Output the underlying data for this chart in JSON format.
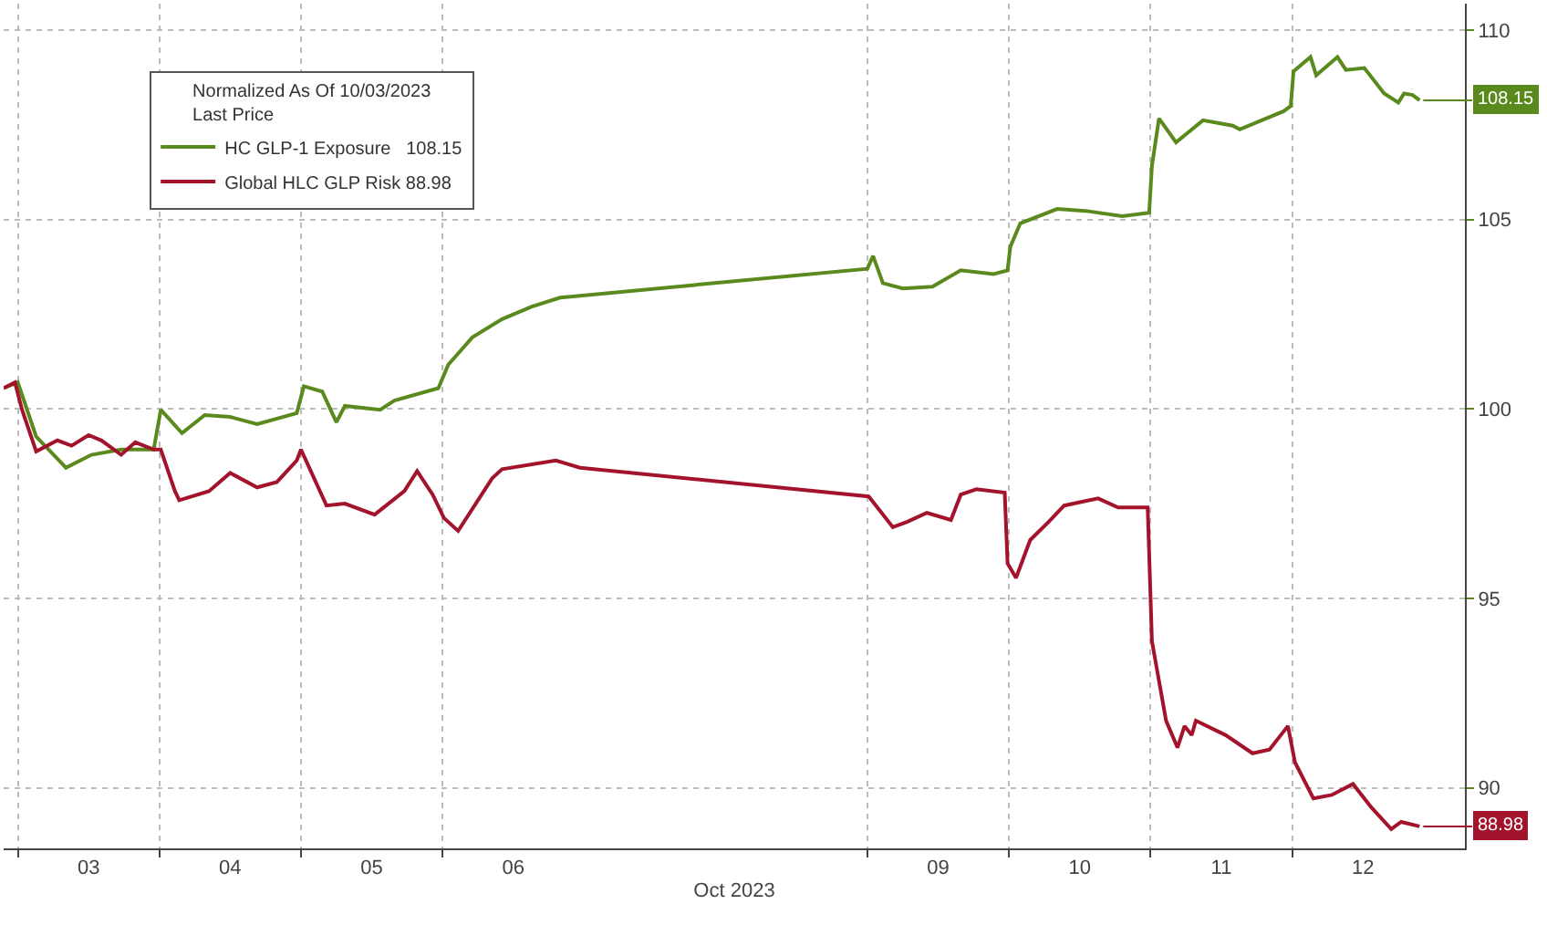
{
  "chart_data": {
    "type": "line",
    "legend_title": "Normalized As Of 10/03/2023\nLast Price",
    "xlabel": "Oct 2023",
    "xlim": [
      "2023-10-02T21:36",
      "2023-10-13T05:17"
    ],
    "xticks": [
      {
        "value": "2023-10-03",
        "label": null
      },
      {
        "value": "2023-10-03T12:00",
        "label": "03"
      },
      {
        "value": "2023-10-04",
        "label": null
      },
      {
        "value": "2023-10-04T12:00",
        "label": "04"
      },
      {
        "value": "2023-10-05",
        "label": null
      },
      {
        "value": "2023-10-05T12:00",
        "label": "05"
      },
      {
        "value": "2023-10-06",
        "label": null
      },
      {
        "value": "2023-10-06T12:00",
        "label": "06"
      },
      {
        "value": "2023-10-09",
        "label": null
      },
      {
        "value": "2023-10-09T12:00",
        "label": "09"
      },
      {
        "value": "2023-10-10",
        "label": null
      },
      {
        "value": "2023-10-10T12:00",
        "label": "10"
      },
      {
        "value": "2023-10-11",
        "label": null
      },
      {
        "value": "2023-10-11T12:00",
        "label": "11"
      },
      {
        "value": "2023-10-12",
        "label": null
      },
      {
        "value": "2023-10-12T12:00",
        "label": "12"
      }
    ],
    "ylim": [
      88.4,
      110.7
    ],
    "yticks": [
      90,
      95,
      100,
      105,
      110
    ],
    "grid": true,
    "legend": "top left",
    "series": [
      {
        "name": "HC GLP-1 Exposure   108.15",
        "color": "#5a8a1e",
        "x": [
          "2023-10-02T21:36",
          "2023-10-03T00:00",
          "2023-10-03T03:07",
          "2023-10-03T08:10",
          "2023-10-03T12:29",
          "2023-10-03T17:31",
          "2023-10-03T23:02",
          "2023-10-04T00:14",
          "2023-10-04T03:50",
          "2023-10-04T07:41",
          "2023-10-04T12:00",
          "2023-10-04T16:34",
          "2023-10-04T23:17",
          "2023-10-05T00:29",
          "2023-10-05T03:36",
          "2023-10-05T06:00",
          "2023-10-05T07:26",
          "2023-10-05T13:26",
          "2023-10-05T15:50",
          "2023-10-05T23:17",
          "2023-10-06T00:58",
          "2023-10-06T05:02",
          "2023-10-06T10:05",
          "2023-10-06T15:07",
          "2023-10-06T19:55",
          "2023-10-06T23:17",
          "2023-10-09T00:00",
          "2023-10-09T00:58",
          "2023-10-09T02:38",
          "2023-10-09T06:00",
          "2023-10-09T11:02",
          "2023-10-09T15:50",
          "2023-10-09T21:22",
          "2023-10-09T23:46",
          "2023-10-10T00:14",
          "2023-10-10T01:55",
          "2023-10-10T08:10",
          "2023-10-10T12:58",
          "2023-10-10T19:12",
          "2023-10-10T23:46",
          "2023-10-11T00:14",
          "2023-10-11T01:26",
          "2023-10-11T04:19",
          "2023-10-11T08:53",
          "2023-10-11T13:55",
          "2023-10-11T15:07",
          "2023-10-11T22:34",
          "2023-10-11T23:46",
          "2023-10-12T00:14",
          "2023-10-12T03:07",
          "2023-10-12T04:05",
          "2023-10-12T07:41",
          "2023-10-12T09:07",
          "2023-10-12T12:14",
          "2023-10-12T15:36",
          "2023-10-12T18:00",
          "2023-10-12T18:58",
          "2023-10-12T20:24",
          "2023-10-12T21:36"
        ],
        "values": [
          100.55,
          100.7,
          99.27,
          98.45,
          98.79,
          98.93,
          98.93,
          99.98,
          99.36,
          99.84,
          99.79,
          99.6,
          99.89,
          100.6,
          100.46,
          99.65,
          100.08,
          99.98,
          100.22,
          100.55,
          101.17,
          101.89,
          102.37,
          102.7,
          102.94,
          102.99,
          103.7,
          104.04,
          103.32,
          103.18,
          103.23,
          103.66,
          103.56,
          103.66,
          104.28,
          104.9,
          105.28,
          105.23,
          105.09,
          105.18,
          106.42,
          107.67,
          107.04,
          107.62,
          107.48,
          107.38,
          107.86,
          108.0,
          108.91,
          109.29,
          108.81,
          109.29,
          108.95,
          109.0,
          108.33,
          108.09,
          108.33,
          108.29,
          108.15
        ],
        "value_labels": [
          null,
          null,
          null,
          null,
          null,
          null,
          null,
          null,
          null,
          null,
          null,
          null,
          null,
          null,
          null,
          null,
          null,
          null,
          null,
          null,
          null,
          null,
          null,
          null,
          null,
          null,
          null,
          null,
          null,
          null,
          null,
          null,
          null,
          null,
          null,
          null,
          null,
          null,
          null,
          null,
          null,
          null,
          null,
          null,
          null,
          null,
          null,
          null,
          null,
          null,
          null,
          null,
          null,
          null,
          null,
          null,
          null,
          null,
          "108.15"
        ]
      },
      {
        "name": "Global HLC GLP Risk 88.98",
        "color": "#a3142c",
        "x": [
          "2023-10-02T21:36",
          "2023-10-02T23:31",
          "2023-10-03T00:43",
          "2023-10-03T03:07",
          "2023-10-03T06:43",
          "2023-10-03T09:07",
          "2023-10-03T12:00",
          "2023-10-03T14:10",
          "2023-10-03T17:31",
          "2023-10-03T19:55",
          "2023-10-03T23:02",
          "2023-10-04T00:14",
          "2023-10-04T02:38",
          "2023-10-04T03:22",
          "2023-10-04T08:24",
          "2023-10-04T12:00",
          "2023-10-04T16:34",
          "2023-10-04T19:55",
          "2023-10-04T23:17",
          "2023-10-05T00:00",
          "2023-10-05T04:19",
          "2023-10-05T07:26",
          "2023-10-05T12:29",
          "2023-10-05T17:31",
          "2023-10-05T19:41",
          "2023-10-05T22:19",
          "2023-10-06T00:14",
          "2023-10-06T02:38",
          "2023-10-06T08:24",
          "2023-10-06T10:05",
          "2023-10-06T19:12",
          "2023-10-06T23:17",
          "2023-10-09T00:14",
          "2023-10-09T04:19",
          "2023-10-09T06:43",
          "2023-10-09T10:05",
          "2023-10-09T14:10",
          "2023-10-09T15:50",
          "2023-10-09T18:29",
          "2023-10-09T23:17",
          "2023-10-09T23:46",
          "2023-10-10T01:12",
          "2023-10-10T03:36",
          "2023-10-10T06:43",
          "2023-10-10T09:22",
          "2023-10-10T15:07",
          "2023-10-10T18:29",
          "2023-10-10T23:31",
          "2023-10-11T00:14",
          "2023-10-11T02:38",
          "2023-10-11T04:34",
          "2023-10-11T05:46",
          "2023-10-11T06:58",
          "2023-10-11T07:41",
          "2023-10-11T12:43",
          "2023-10-11T17:17",
          "2023-10-11T20:10",
          "2023-10-11T23:17",
          "2023-10-12T00:29",
          "2023-10-12T03:36",
          "2023-10-12T06:43",
          "2023-10-12T10:19",
          "2023-10-12T13:26",
          "2023-10-12T16:48",
          "2023-10-12T18:29",
          "2023-10-12T21:36"
        ],
        "values": [
          100.55,
          100.7,
          99.98,
          98.88,
          99.17,
          99.03,
          99.31,
          99.17,
          98.79,
          99.12,
          98.93,
          98.93,
          97.83,
          97.59,
          97.83,
          98.31,
          97.93,
          98.07,
          98.64,
          98.93,
          97.45,
          97.5,
          97.21,
          97.83,
          98.36,
          97.74,
          97.12,
          96.78,
          98.17,
          98.41,
          98.64,
          98.45,
          97.69,
          96.88,
          97.02,
          97.26,
          97.07,
          97.74,
          97.88,
          97.79,
          95.92,
          95.54,
          96.54,
          97.02,
          97.45,
          97.64,
          97.4,
          97.4,
          93.87,
          91.77,
          91.06,
          91.63,
          91.39,
          91.77,
          91.39,
          90.91,
          91.01,
          91.63,
          90.67,
          89.72,
          89.81,
          90.1,
          89.48,
          88.91,
          89.1,
          88.98
        ],
        "value_labels": [
          null,
          null,
          null,
          null,
          null,
          null,
          null,
          null,
          null,
          null,
          null,
          null,
          null,
          null,
          null,
          null,
          null,
          null,
          null,
          null,
          null,
          null,
          null,
          null,
          null,
          null,
          null,
          null,
          null,
          null,
          null,
          null,
          null,
          null,
          null,
          null,
          null,
          null,
          null,
          null,
          null,
          null,
          null,
          null,
          null,
          null,
          null,
          null,
          null,
          null,
          null,
          null,
          null,
          null,
          null,
          null,
          null,
          null,
          null,
          null,
          null,
          null,
          null,
          null,
          null,
          "88.98"
        ]
      }
    ],
    "data_labels": false
  }
}
